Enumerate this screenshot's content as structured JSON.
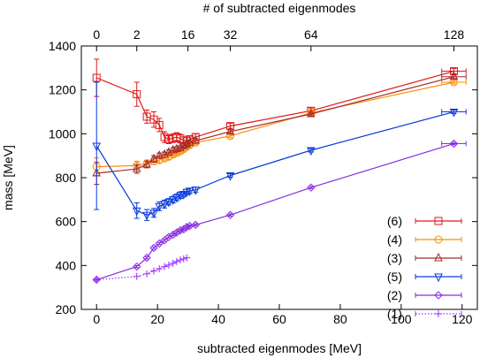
{
  "chart_data": {
    "type": "line",
    "title": "",
    "xlabel": "subtracted eigenmodes [MeV]",
    "ylabel": "mass [MeV]",
    "x2label": "# of subtracted eigenmodes",
    "xlim": [
      -5,
      125
    ],
    "ylim": [
      200,
      1400
    ],
    "x_ticks": [
      0,
      20,
      40,
      60,
      80,
      100,
      120
    ],
    "y_ticks": [
      200,
      400,
      600,
      800,
      1000,
      1200,
      1400
    ],
    "x2_ticks": [
      {
        "label": "0",
        "x": 0
      },
      {
        "label": "2",
        "x": 13.2
      },
      {
        "label": "16",
        "x": 30
      },
      {
        "label": "32",
        "x": 43.9
      },
      {
        "label": "64",
        "x": 70.4
      },
      {
        "label": "128",
        "x": 117.3
      }
    ],
    "grid": false,
    "legend_position": "bottom-right",
    "series": [
      {
        "name": "(6)",
        "color": "#e01a1a",
        "marker": "square",
        "x": [
          0,
          13.2,
          16.5,
          18.8,
          20.6,
          22.3,
          23.7,
          25.1,
          26.3,
          27.5,
          28.6,
          29.6,
          30.6,
          32.5,
          43.9,
          70.4,
          117.3
        ],
        "y": [
          1255,
          1180,
          1078,
          1065,
          1040,
          985,
          975,
          980,
          985,
          978,
          970,
          968,
          975,
          985,
          1035,
          1105,
          1285
        ],
        "yerr": [
          85,
          55,
          30,
          35,
          30,
          25,
          20,
          20,
          20,
          20,
          15,
          15,
          15,
          15,
          12,
          12,
          12
        ],
        "xerr": [
          0,
          0,
          0,
          0,
          0,
          0,
          0,
          0,
          0,
          0,
          0,
          0,
          0,
          0,
          0,
          0,
          4
        ]
      },
      {
        "name": "(4)",
        "color": "#ff8c00",
        "marker": "circle",
        "x": [
          0,
          13.2,
          16.5,
          18.8,
          20.6,
          22.3,
          23.7,
          25.1,
          26.3,
          27.5,
          28.6,
          29.6,
          30.6,
          32.5,
          43.9,
          70.4,
          117.3
        ],
        "y": [
          850,
          855,
          865,
          875,
          880,
          888,
          895,
          905,
          912,
          920,
          930,
          940,
          948,
          960,
          990,
          1095,
          1235
        ],
        "yerr": [
          40,
          20,
          15,
          15,
          12,
          12,
          12,
          12,
          10,
          10,
          10,
          10,
          10,
          10,
          8,
          8,
          8
        ],
        "xerr": [
          0,
          0,
          0,
          0,
          0,
          0,
          0,
          0,
          0,
          0,
          0,
          0,
          0,
          0,
          0,
          0,
          4
        ]
      },
      {
        "name": "(3)",
        "color": "#a52a2a",
        "marker": "triangle-up",
        "x": [
          0,
          13.2,
          16.5,
          18.8,
          20.6,
          22.3,
          23.7,
          25.1,
          26.3,
          27.5,
          28.6,
          29.6,
          30.6,
          32.5,
          43.9,
          70.4,
          117.3
        ],
        "y": [
          820,
          840,
          860,
          885,
          900,
          905,
          915,
          925,
          930,
          935,
          945,
          952,
          958,
          968,
          1010,
          1090,
          1260
        ],
        "yerr": [
          50,
          20,
          15,
          15,
          12,
          12,
          12,
          12,
          10,
          10,
          10,
          10,
          10,
          10,
          8,
          8,
          8
        ],
        "xerr": [
          0,
          0,
          0,
          0,
          0,
          0,
          0,
          0,
          0,
          0,
          0,
          0,
          0,
          0,
          0,
          0,
          4
        ]
      },
      {
        "name": "(5)",
        "color": "#0b3bd9",
        "marker": "triangle-down",
        "x": [
          0,
          13.2,
          16.5,
          18.8,
          20.6,
          22.3,
          23.7,
          25.1,
          26.3,
          27.5,
          28.6,
          29.6,
          30.6,
          32.5,
          43.9,
          70.4,
          117.3
        ],
        "y": [
          945,
          650,
          630,
          640,
          670,
          680,
          690,
          700,
          710,
          720,
          725,
          735,
          740,
          745,
          810,
          925,
          1100
        ],
        "yerr": [
          290,
          35,
          25,
          20,
          20,
          18,
          15,
          15,
          15,
          15,
          12,
          12,
          12,
          12,
          8,
          8,
          8
        ],
        "xerr": [
          0,
          0,
          0,
          0,
          0,
          0,
          0,
          0,
          0,
          0,
          0,
          0,
          0,
          0,
          0,
          0,
          4
        ]
      },
      {
        "name": "(2)",
        "color": "#8a2be2",
        "marker": "diamond",
        "x": [
          0,
          13.2,
          16.5,
          18.8,
          20.6,
          22.3,
          23.7,
          25.1,
          26.3,
          27.5,
          28.6,
          29.6,
          30.6,
          32.5,
          43.9,
          70.4,
          117.3
        ],
        "y": [
          335,
          395,
          435,
          480,
          500,
          515,
          530,
          540,
          550,
          560,
          565,
          575,
          580,
          585,
          630,
          755,
          955
        ],
        "yerr": [
          5,
          5,
          5,
          5,
          5,
          5,
          5,
          5,
          5,
          5,
          5,
          5,
          5,
          5,
          5,
          5,
          5
        ],
        "xerr": [
          0,
          0,
          0,
          0,
          0,
          0,
          0,
          0,
          0,
          0,
          0,
          0,
          0,
          0,
          0,
          0,
          4
        ]
      },
      {
        "name": "(1)",
        "color": "#9b30ff",
        "marker": "plus",
        "dashed": true,
        "x": [
          0,
          13.2,
          16.5,
          18.8,
          20.6,
          22.3,
          23.7,
          25.1,
          26.3,
          27.5,
          28.6,
          29.6
        ],
        "y": [
          335,
          350,
          362,
          375,
          385,
          395,
          402,
          410,
          418,
          425,
          430,
          435
        ],
        "yerr": [
          0,
          0,
          0,
          0,
          0,
          0,
          0,
          0,
          0,
          0,
          0,
          0
        ],
        "xerr": [
          0,
          0,
          0,
          0,
          0,
          0,
          0,
          0,
          0,
          0,
          0,
          0
        ]
      }
    ]
  }
}
